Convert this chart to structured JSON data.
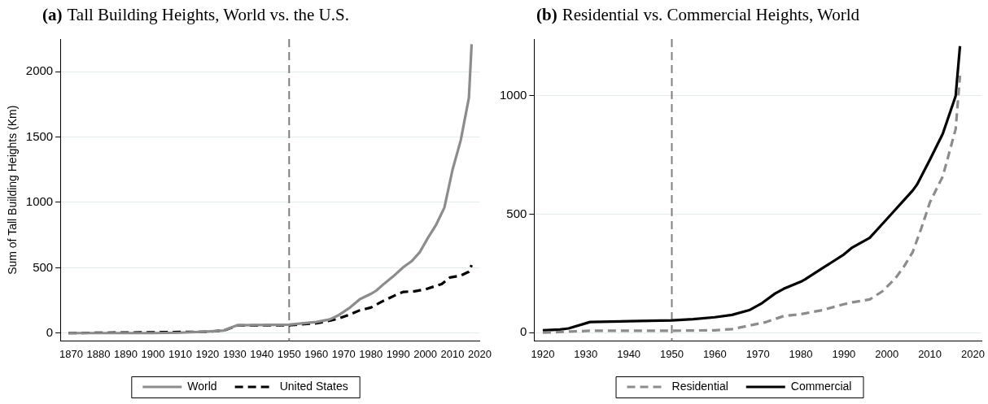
{
  "chart_data": [
    {
      "type": "line",
      "title": "(a) Tall Building Heights, World vs. the U.S.",
      "ylabel": "Sum of Tall Building Heights (Km)",
      "xlim": [
        1866,
        2020
      ],
      "xticks": [
        1870,
        1880,
        1890,
        1900,
        1910,
        1920,
        1930,
        1940,
        1950,
        1960,
        1970,
        1980,
        1990,
        2000,
        2010,
        2020
      ],
      "ylim": [
        -60,
        2250
      ],
      "yticks": [
        0,
        500,
        1000,
        1500,
        2000
      ],
      "grid": "y",
      "legend": "bottom",
      "marker": "none",
      "ref_lines": [
        {
          "axis": "x",
          "value": 1950,
          "color": "#808080",
          "line_style": "dashed"
        }
      ],
      "series": [
        {
          "name": "World",
          "color": "#8c8c8c",
          "line_style": "solid",
          "x": [
            1869,
            1900,
            1910,
            1920,
            1926,
            1931,
            1950,
            1960,
            1965,
            1968,
            1972,
            1976,
            1980,
            1982,
            1985,
            1988,
            1992,
            1995,
            1998,
            2001,
            2004,
            2007,
            2010,
            2013,
            2016,
            2017
          ],
          "values": [
            0,
            0,
            3,
            12,
            20,
            60,
            65,
            85,
            105,
            135,
            190,
            260,
            300,
            325,
            380,
            430,
            505,
            550,
            620,
            730,
            830,
            960,
            1250,
            1475,
            1800,
            2210
          ]
        },
        {
          "name": "United States",
          "color": "#000000",
          "line_style": "dashed",
          "x": [
            1869,
            1920,
            1926,
            1931,
            1950,
            1960,
            1965,
            1968,
            1972,
            1976,
            1980,
            1984,
            1990,
            1992,
            1996,
            2000,
            2006,
            2009,
            2013,
            2016,
            2017
          ],
          "values": [
            0,
            10,
            20,
            58,
            60,
            75,
            95,
            110,
            140,
            175,
            195,
            240,
            300,
            315,
            320,
            335,
            375,
            425,
            440,
            470,
            520
          ]
        }
      ]
    },
    {
      "type": "line",
      "title": "(b) Residential vs. Commercial Heights, World",
      "xlim": [
        1918,
        2022
      ],
      "xticks": [
        1920,
        1930,
        1940,
        1950,
        1960,
        1970,
        1980,
        1990,
        2000,
        2010,
        2020
      ],
      "ylim": [
        -35,
        1240
      ],
      "yticks": [
        0,
        500,
        1000
      ],
      "grid": "y",
      "legend": "bottom",
      "marker": "none",
      "ref_lines": [
        {
          "axis": "x",
          "value": 1950,
          "color": "#808080",
          "line_style": "dashed"
        }
      ],
      "series": [
        {
          "name": "Residential",
          "color": "#8c8c8c",
          "line_style": "dashed",
          "x": [
            1920,
            1931,
            1950,
            1960,
            1964,
            1968,
            1972,
            1976,
            1980,
            1985,
            1990,
            1992,
            1996,
            1999,
            2002,
            2004,
            2006,
            2008,
            2010,
            2013,
            2016,
            2017
          ],
          "values": [
            0,
            8,
            8,
            10,
            15,
            30,
            45,
            70,
            78,
            95,
            120,
            128,
            140,
            175,
            230,
            280,
            340,
            440,
            550,
            660,
            860,
            1085
          ]
        },
        {
          "name": "Commercial",
          "color": "#000000",
          "line_style": "solid",
          "x": [
            1920,
            1924,
            1926,
            1931,
            1940,
            1950,
            1955,
            1960,
            1964,
            1968,
            1971,
            1974,
            1976,
            1980,
            1981,
            1984,
            1987,
            1990,
            1992,
            1996,
            1999,
            2002,
            2006,
            2007,
            2010,
            2013,
            2016,
            2017
          ],
          "values": [
            10,
            13,
            18,
            45,
            48,
            52,
            57,
            65,
            75,
            95,
            125,
            165,
            185,
            215,
            225,
            260,
            295,
            330,
            360,
            400,
            460,
            520,
            600,
            625,
            730,
            840,
            1000,
            1210
          ]
        }
      ]
    }
  ]
}
